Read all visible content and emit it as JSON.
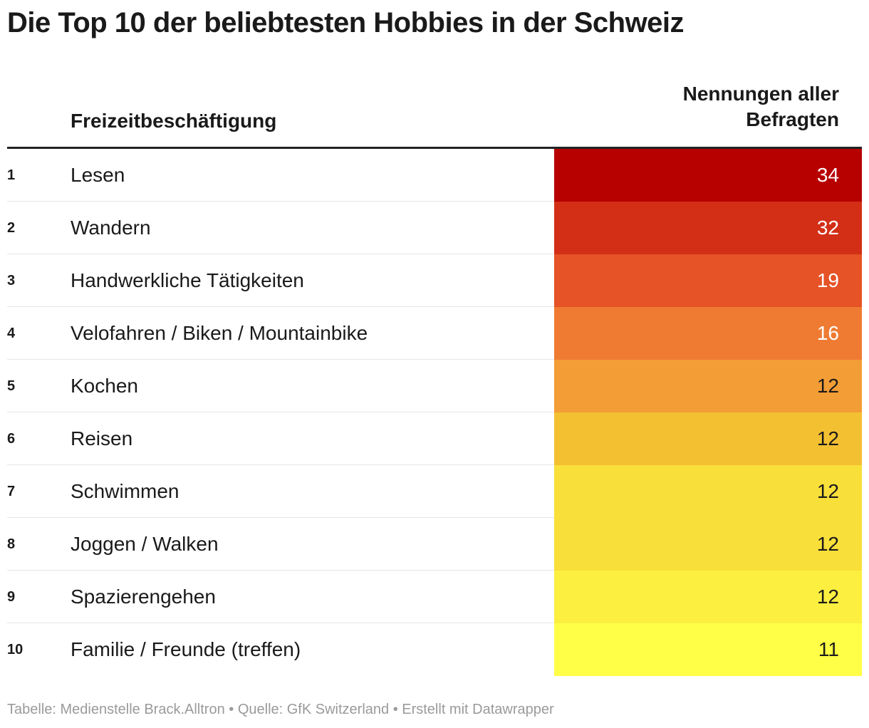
{
  "chart_data": {
    "type": "table",
    "title": "Die Top 10 der beliebtesten Hobbies in der Schweiz",
    "columns": {
      "name": "Freizeitbeschäftigung",
      "value": "Nennungen aller Befragten"
    },
    "value_header_lines": [
      "Nennungen aller",
      "Befragten"
    ],
    "rows": [
      {
        "rank": "1",
        "name": "Lesen",
        "value": 34,
        "color": "#b70000",
        "text_color": "#ffffff"
      },
      {
        "rank": "2",
        "name": "Wandern",
        "value": 32,
        "color": "#d32f17",
        "text_color": "#ffffff"
      },
      {
        "rank": "3",
        "name": "Handwerkliche Tätigkeiten",
        "value": 19,
        "color": "#e55327",
        "text_color": "#ffffff"
      },
      {
        "rank": "4",
        "name": "Velofahren / Biken / Mountainbike",
        "value": 16,
        "color": "#ef7b33",
        "text_color": "#ffffff"
      },
      {
        "rank": "5",
        "name": "Kochen",
        "value": 12,
        "color": "#f39d36",
        "text_color": "#1a1a1a"
      },
      {
        "rank": "6",
        "name": "Reisen",
        "value": 12,
        "color": "#f3c032",
        "text_color": "#1a1a1a"
      },
      {
        "rank": "7",
        "name": "Schwimmen",
        "value": 12,
        "color": "#f9df3a",
        "text_color": "#1a1a1a"
      },
      {
        "rank": "8",
        "name": "Joggen / Walken",
        "value": 12,
        "color": "#f9df3a",
        "text_color": "#1a1a1a"
      },
      {
        "rank": "9",
        "name": "Spazierengehen",
        "value": 12,
        "color": "#fcef40",
        "text_color": "#1a1a1a"
      },
      {
        "rank": "10",
        "name": "Familie / Freunde (treffen)",
        "value": 11,
        "color": "#ffff47",
        "text_color": "#1a1a1a"
      }
    ]
  },
  "footer": "Tabelle: Medienstelle Brack.Alltron • Quelle: GfK Switzerland • Erstellt mit Datawrapper"
}
